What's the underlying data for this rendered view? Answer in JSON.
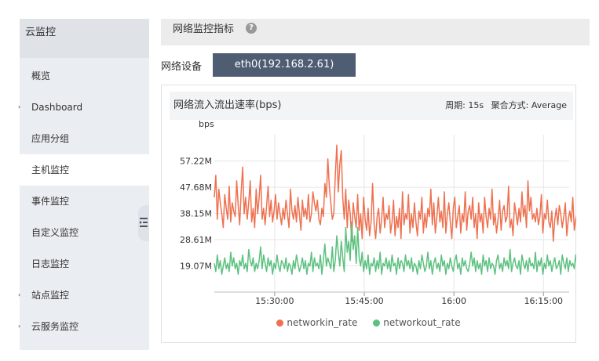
{
  "sidebar": {
    "title": "云监控",
    "items": [
      {
        "label": "概览",
        "arrow": false,
        "active": false
      },
      {
        "label": "Dashboard",
        "arrow": true,
        "active": false
      },
      {
        "label": "应用分组",
        "arrow": false,
        "active": false
      },
      {
        "label": "主机监控",
        "arrow": false,
        "active": true
      },
      {
        "label": "事件监控",
        "arrow": false,
        "active": false
      },
      {
        "label": "自定义监控",
        "arrow": false,
        "active": false
      },
      {
        "label": "日志监控",
        "arrow": false,
        "active": false
      },
      {
        "label": "站点监控",
        "arrow": true,
        "active": false
      },
      {
        "label": "云服务监控",
        "arrow": true,
        "active": false
      }
    ],
    "arrow_glyph": "›"
  },
  "topbar": {
    "title": "网络监控指标",
    "help_glyph": "?"
  },
  "device": {
    "label": "网络设备",
    "selected": "eth0(192.168.2.61)"
  },
  "panel": {
    "title": "网络流入流出速率(bps)",
    "period_label": "周期: 15s",
    "aggregate_label": "聚合方式: Average"
  },
  "colors": {
    "in": "#ee7150",
    "out": "#5cc17f",
    "grid": "#e6e6e6",
    "axis": "#333333"
  },
  "chart_data": {
    "type": "line",
    "ylabel": "bps",
    "y_ticks": [
      "57.22M",
      "47.68M",
      "38.15M",
      "28.61M",
      "19.07M"
    ],
    "y_tick_values": [
      57.22,
      47.68,
      38.15,
      28.61,
      19.07
    ],
    "ylim": [
      9.5,
      66.8
    ],
    "x_tick_labels": [
      "15:30:00",
      "15:45:00",
      "16:00",
      "16:15:00"
    ],
    "x_tick_minutes": [
      30,
      45,
      60,
      75
    ],
    "xlim_minutes": [
      19.9,
      79.3
    ],
    "x_start_minute": 19.9,
    "x_step_minutes": 0.25,
    "series": [
      {
        "name": "networkin_rate",
        "color": "#ee7150",
        "values": [
          44,
          52,
          36,
          47,
          42,
          38,
          33,
          45,
          40,
          36,
          48,
          35,
          42,
          39,
          37,
          50,
          41,
          34,
          46,
          55,
          38,
          44,
          36,
          42,
          50,
          35,
          40,
          33,
          47,
          38,
          44,
          52,
          36,
          40,
          34,
          41,
          48,
          37,
          43,
          35,
          39,
          45,
          36,
          42,
          38,
          34,
          40,
          36,
          43,
          38,
          33,
          47,
          39,
          36,
          41,
          35,
          44,
          38,
          32,
          43,
          37,
          40,
          36,
          45,
          35,
          38,
          46,
          42,
          39,
          43,
          36,
          34,
          40,
          37,
          49,
          44,
          58,
          48,
          42,
          36,
          38,
          52,
          63,
          46,
          56,
          61,
          44,
          36,
          47,
          33,
          43,
          38,
          28,
          42,
          37,
          33,
          45,
          32,
          38,
          29,
          44,
          36,
          32,
          40,
          30,
          35,
          49,
          34,
          29,
          37,
          40,
          31,
          36,
          44,
          33,
          38,
          36,
          41,
          31,
          35,
          43,
          30,
          37,
          33,
          40,
          29,
          46,
          34,
          38,
          36,
          45,
          31,
          38,
          33,
          42,
          35,
          30,
          39,
          36,
          44,
          31,
          38,
          33,
          40,
          37,
          47,
          34,
          42,
          31,
          37,
          44,
          35,
          39,
          33,
          46,
          31,
          38,
          42,
          35,
          29,
          40,
          44,
          33,
          37,
          41,
          31,
          38,
          35,
          46,
          32,
          39,
          41,
          36,
          44,
          33,
          38,
          29,
          42,
          35,
          38,
          31,
          44,
          37,
          33,
          40,
          36,
          47,
          34,
          38,
          31,
          36,
          43,
          32,
          39,
          41,
          35,
          37,
          48,
          33,
          36,
          30,
          42,
          38,
          34,
          40,
          35,
          46,
          37,
          41,
          33,
          50,
          39,
          44,
          36,
          38,
          35,
          40,
          34,
          37,
          45,
          31,
          38,
          36,
          43,
          35,
          33,
          39,
          28,
          36,
          40,
          34,
          41,
          38,
          33,
          37,
          42,
          30,
          36,
          39,
          35,
          44,
          32,
          36,
          38
        ]
      },
      {
        "name": "networkout_rate",
        "color": "#5cc17f",
        "values": [
          20,
          17,
          23,
          18,
          21,
          16,
          19,
          22,
          18,
          20,
          17,
          24,
          19,
          22,
          18,
          20,
          16,
          21,
          19,
          23,
          18,
          20,
          17,
          25,
          21,
          19,
          22,
          17,
          20,
          18,
          21,
          26,
          18,
          23,
          20,
          17,
          22,
          19,
          21,
          16,
          20,
          18,
          23,
          19,
          17,
          21,
          20,
          18,
          22,
          17,
          20,
          19,
          16,
          21,
          18,
          23,
          20,
          17,
          19,
          22,
          18,
          21,
          16,
          20,
          19,
          24,
          17,
          22,
          19,
          20,
          18,
          23,
          16,
          21,
          27,
          19,
          22,
          20,
          18,
          26,
          17,
          21,
          30,
          24,
          19,
          28,
          22,
          17,
          33,
          24,
          28,
          21,
          35,
          25,
          30,
          20,
          33,
          22,
          19,
          24,
          17,
          21,
          18,
          23,
          16,
          20,
          19,
          22,
          17,
          21,
          18,
          24,
          16,
          20,
          19,
          22,
          18,
          21,
          17,
          23,
          19,
          20,
          16,
          22,
          18,
          21,
          20,
          17,
          23,
          19,
          21,
          18,
          22,
          17,
          20,
          19,
          16,
          21,
          18,
          23,
          20,
          17,
          19,
          24,
          18,
          21,
          16,
          20,
          22,
          18,
          20,
          17,
          23,
          19,
          21,
          16,
          20,
          18,
          22,
          19,
          17,
          21,
          23,
          18,
          20,
          16,
          22,
          19,
          21,
          18,
          17,
          20,
          24,
          19,
          22,
          17,
          21,
          18,
          20,
          16,
          23,
          19,
          21,
          17,
          22,
          18,
          20,
          19,
          16,
          21,
          23,
          18,
          20,
          17,
          22,
          19,
          21,
          18,
          25,
          17,
          20,
          22,
          19,
          18,
          21,
          16,
          23,
          20,
          18,
          21,
          17,
          22,
          19,
          20,
          18,
          24,
          17,
          21,
          19,
          22,
          16,
          20,
          18,
          23,
          19,
          21,
          17,
          20,
          22,
          18,
          19,
          21,
          16,
          23,
          20,
          18,
          22,
          17,
          21,
          19,
          20,
          18,
          23,
          19,
          17
        ]
      }
    ]
  }
}
